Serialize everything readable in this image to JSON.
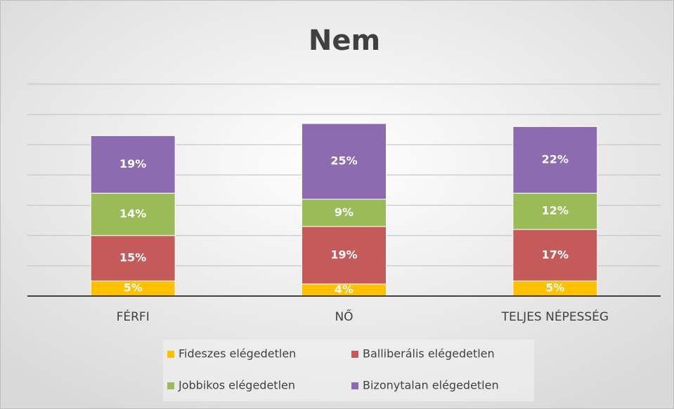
{
  "chart_data": {
    "type": "stacked_bar",
    "title": "Nem",
    "categories": [
      "FÉRFI",
      "NŐ",
      "TELJES NÉPESSÉG"
    ],
    "series": [
      {
        "name": "Fideszes elégedetlen",
        "color": "#ffc000",
        "values": [
          5,
          4,
          5
        ],
        "value_labels": [
          "5%",
          "4%",
          "5%"
        ]
      },
      {
        "name": "Balliberális elégedetlen",
        "color": "#c55a5a",
        "values": [
          15,
          19,
          17
        ],
        "value_labels": [
          "15%",
          "19%",
          "17%"
        ]
      },
      {
        "name": "Jobbikos elégedetlen",
        "color": "#9bbb59",
        "values": [
          14,
          9,
          12
        ],
        "value_labels": [
          "14%",
          "9%",
          "12%"
        ]
      },
      {
        "name": "Bizonytalan elégedetlen",
        "color": "#8c6bb1",
        "values": [
          19,
          25,
          22
        ],
        "value_labels": [
          "19%",
          "25%",
          "22%"
        ]
      }
    ],
    "ylim": [
      0,
      70
    ],
    "yticks": [
      0,
      10,
      20,
      30,
      40,
      50,
      60,
      70
    ],
    "grid": true,
    "legend": "bottom"
  }
}
